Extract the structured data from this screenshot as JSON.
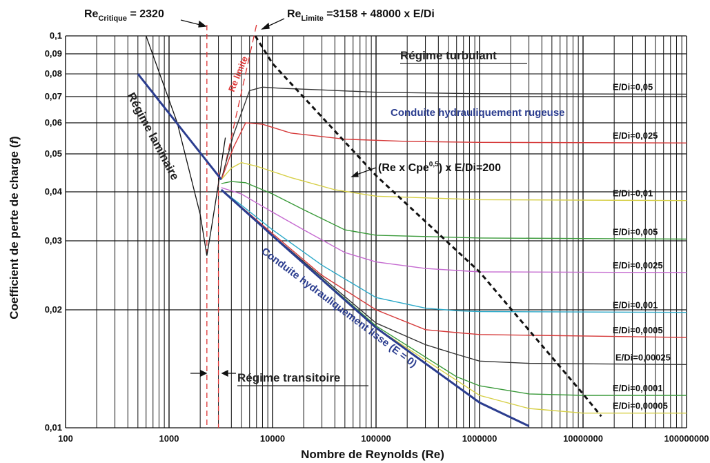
{
  "chart_data": {
    "type": "line",
    "x_scale": "log",
    "y_scale": "log",
    "xlim": [
      100,
      100000000
    ],
    "ylim": [
      0.01,
      0.1
    ],
    "grid": true,
    "xlabel": "Nombre de Reynolds (Re)",
    "ylabel": "Coefficient de perte de charge (f)",
    "xlabel_prefix": "Nombre de Reynolds (",
    "xlabel_sym": "Re",
    "xlabel_suffix": ")",
    "ylabel_prefix": "Coefficient de perte de charge (",
    "ylabel_sym": "f",
    "ylabel_suffix": ")",
    "x_ticks": [
      {
        "value": 100,
        "label": "100"
      },
      {
        "value": 1000,
        "label": "1000"
      },
      {
        "value": 10000,
        "label": "10000"
      },
      {
        "value": 100000,
        "label": "100000"
      },
      {
        "value": 1000000,
        "label": "1000000"
      },
      {
        "value": 10000000,
        "label": "10000000"
      },
      {
        "value": 100000000,
        "label": "100000000"
      }
    ],
    "y_ticks": [
      {
        "value": 0.1,
        "label": "0,1"
      },
      {
        "value": 0.09,
        "label": "0,09"
      },
      {
        "value": 0.08,
        "label": "0,08"
      },
      {
        "value": 0.07,
        "label": "0,07"
      },
      {
        "value": 0.06,
        "label": "0,06"
      },
      {
        "value": 0.05,
        "label": "0,05"
      },
      {
        "value": 0.04,
        "label": "0,04"
      },
      {
        "value": 0.03,
        "label": "0,03"
      },
      {
        "value": 0.02,
        "label": "0,02"
      },
      {
        "value": 0.01,
        "label": "0,01"
      }
    ],
    "annotations": {
      "re_critique_main": "Re",
      "re_critique_sub": "Critique",
      "re_critique_value": " = 2320",
      "re_limite_main": "Re",
      "re_limite_sub": "Limite",
      "re_limite_value": " =3158 + 48000 x E/Di",
      "re_limite_rotated": "Re limite",
      "regime_turbulent": "Régime turbulant",
      "regime_laminaire": "Régime laminaire",
      "regime_transitoire": "Régime transitoire",
      "conduite_rugueuse": "Conduite hydrauliquement rugeuse",
      "conduite_lisse": "Conduite hydrauliquement lisse (E = 0)",
      "cpe_label_a": "(Re x Cpe",
      "cpe_label_sup": "0,5",
      "cpe_label_b": ") x E/Di=200"
    },
    "laminar": {
      "name": "Régime laminaire",
      "color": "#2b3d8f",
      "x": [
        500,
        3200
      ],
      "y": [
        0.08,
        0.043
      ]
    },
    "smooth": {
      "name": "Conduite hydrauliquement lisse (E = 0)",
      "color": "#2b3d8f",
      "x": [
        3200,
        10000,
        100000,
        1000000,
        3000000
      ],
      "y": [
        0.0405,
        0.0309,
        0.018,
        0.0116,
        0.0101
      ]
    },
    "limit_line": {
      "color": "#111111",
      "x": [
        6800,
        10000,
        100000,
        1000000,
        10000000,
        15000000
      ],
      "y": [
        0.1,
        0.085,
        0.044,
        0.025,
        0.0122,
        0.0107
      ]
    },
    "critical_re": 2320,
    "transition_re": 3000,
    "transition_curve": {
      "color": "#111111",
      "x": [
        600,
        1200,
        2000,
        2320,
        2600,
        3000,
        3500
      ],
      "y": [
        0.1,
        0.06,
        0.035,
        0.0275,
        0.033,
        0.042,
        0.055
      ]
    },
    "series": [
      {
        "name": "E/Di=0,05",
        "color": "#333333",
        "x": [
          3200,
          4200,
          6000,
          8000,
          12000,
          30000,
          100000,
          1000000,
          100000000
        ],
        "y": [
          0.043,
          0.056,
          0.0725,
          0.074,
          0.0735,
          0.0728,
          0.0718,
          0.0712,
          0.071
        ]
      },
      {
        "name": "E/Di=0,025",
        "color": "#d63a3a",
        "x": [
          3200,
          4200,
          5500,
          8000,
          15000,
          50000,
          200000,
          1000000,
          100000000
        ],
        "y": [
          0.043,
          0.052,
          0.06,
          0.0595,
          0.0565,
          0.0545,
          0.0538,
          0.0535,
          0.0533
        ]
      },
      {
        "name": "E/Di=0,01",
        "color": "#d6cf46",
        "x": [
          3200,
          4000,
          5000,
          7000,
          15000,
          40000,
          100000,
          1000000,
          100000000
        ],
        "y": [
          0.043,
          0.046,
          0.0475,
          0.0465,
          0.0435,
          0.0405,
          0.039,
          0.0382,
          0.038
        ]
      },
      {
        "name": "E/Di=0,005",
        "color": "#3a9a3a",
        "x": [
          3200,
          4000,
          5500,
          10000,
          20000,
          50000,
          100000,
          1000000,
          100000000
        ],
        "y": [
          0.042,
          0.0425,
          0.0422,
          0.0395,
          0.036,
          0.032,
          0.031,
          0.0305,
          0.0303
        ]
      },
      {
        "name": "E/Di=0,0025",
        "color": "#c56ad0",
        "x": [
          3200,
          5000,
          10000,
          20000,
          50000,
          100000,
          300000,
          1000000,
          100000000
        ],
        "y": [
          0.041,
          0.0395,
          0.0355,
          0.032,
          0.028,
          0.0265,
          0.0255,
          0.025,
          0.0249
        ]
      },
      {
        "name": "E/Di=0,001",
        "color": "#2aa8c8",
        "x": [
          3200,
          5000,
          10000,
          30000,
          100000,
          300000,
          600000,
          1000000,
          100000000
        ],
        "y": [
          0.0405,
          0.037,
          0.032,
          0.026,
          0.0215,
          0.0202,
          0.0199,
          0.0198,
          0.0197
        ]
      },
      {
        "name": "E/Di=0,0005",
        "color": "#d63a3a",
        "x": [
          3200,
          10000,
          30000,
          100000,
          300000,
          600000,
          1000000,
          100000000
        ],
        "y": [
          0.0405,
          0.0313,
          0.0245,
          0.02,
          0.0178,
          0.0175,
          0.0173,
          0.017
        ]
      },
      {
        "name": "E/Di=0,00025",
        "color": "#333333",
        "x": [
          3200,
          10000,
          100000,
          300000,
          600000,
          1000000,
          3000000,
          100000000
        ],
        "y": [
          0.0405,
          0.031,
          0.0185,
          0.0163,
          0.0154,
          0.0148,
          0.0146,
          0.0145
        ]
      },
      {
        "name": "E/Di=0,0001",
        "color": "#3a9a3a",
        "x": [
          3200,
          10000,
          100000,
          600000,
          1000000,
          3000000,
          10000000,
          100000000
        ],
        "y": [
          0.0405,
          0.0309,
          0.0182,
          0.0135,
          0.0128,
          0.0122,
          0.0121,
          0.0121
        ]
      },
      {
        "name": "E/Di=0,00005",
        "color": "#d6cf46",
        "x": [
          3200,
          10000,
          100000,
          1000000,
          3000000,
          10000000,
          100000000
        ],
        "y": [
          0.0405,
          0.0309,
          0.018,
          0.0121,
          0.0112,
          0.0109,
          0.0109
        ]
      }
    ]
  }
}
